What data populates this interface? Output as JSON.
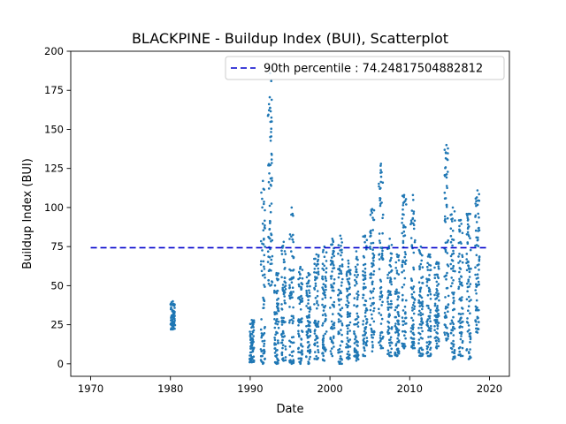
{
  "chart_data": {
    "type": "scatter",
    "title": "BLACKPINE - Buildup Index (BUI), Scatterplot",
    "xlabel": "Date",
    "ylabel": "Buildup Index (BUI)",
    "xlim": [
      1967.5,
      2022.5
    ],
    "ylim": [
      -8,
      200
    ],
    "xticks": [
      1970,
      1980,
      1990,
      2000,
      2010,
      2020
    ],
    "yticks": [
      0,
      25,
      50,
      75,
      100,
      125,
      150,
      175,
      200
    ],
    "grid": false,
    "legend_position": "top-right",
    "point_color": "#1f77b4",
    "reference_line": {
      "label": "90th percentile : 74.24817504882812",
      "y": 74.24817504882812,
      "x_range": [
        1970,
        2020
      ],
      "color": "#0000cc",
      "style": "dashed"
    },
    "series": [
      {
        "clusters": [
          {
            "x": 1980.3,
            "y_min": 22,
            "y_max": 40
          },
          {
            "x": 1990.2,
            "y_min": 1,
            "y_max": 28
          },
          {
            "x": 1991.6,
            "y_min": 0,
            "y_max": 117
          },
          {
            "x": 1992.5,
            "y_min": 50,
            "y_max": 186
          },
          {
            "x": 1993.3,
            "y_min": 0,
            "y_max": 58
          },
          {
            "x": 1994.2,
            "y_min": 2,
            "y_max": 78
          },
          {
            "x": 1995.2,
            "y_min": 0,
            "y_max": 100
          },
          {
            "x": 1996.3,
            "y_min": 0,
            "y_max": 62
          },
          {
            "x": 1997.3,
            "y_min": 0,
            "y_max": 58
          },
          {
            "x": 1998.3,
            "y_min": 3,
            "y_max": 70
          },
          {
            "x": 1999.3,
            "y_min": 2,
            "y_max": 75
          },
          {
            "x": 2000.3,
            "y_min": 5,
            "y_max": 80
          },
          {
            "x": 2001.3,
            "y_min": 0,
            "y_max": 82
          },
          {
            "x": 2002.3,
            "y_min": 3,
            "y_max": 66
          },
          {
            "x": 2003.3,
            "y_min": 2,
            "y_max": 72
          },
          {
            "x": 2004.4,
            "y_min": 5,
            "y_max": 82
          },
          {
            "x": 2005.3,
            "y_min": 8,
            "y_max": 99
          },
          {
            "x": 2006.4,
            "y_min": 10,
            "y_max": 128
          },
          {
            "x": 2007.5,
            "y_min": 5,
            "y_max": 80
          },
          {
            "x": 2008.4,
            "y_min": 5,
            "y_max": 70
          },
          {
            "x": 2009.3,
            "y_min": 10,
            "y_max": 108
          },
          {
            "x": 2010.4,
            "y_min": 10,
            "y_max": 108
          },
          {
            "x": 2011.4,
            "y_min": 5,
            "y_max": 75
          },
          {
            "x": 2012.4,
            "y_min": 5,
            "y_max": 70
          },
          {
            "x": 2013.4,
            "y_min": 10,
            "y_max": 65
          },
          {
            "x": 2014.6,
            "y_min": 15,
            "y_max": 140
          },
          {
            "x": 2015.4,
            "y_min": 3,
            "y_max": 100
          },
          {
            "x": 2016.4,
            "y_min": 5,
            "y_max": 92
          },
          {
            "x": 2017.4,
            "y_min": 3,
            "y_max": 96
          },
          {
            "x": 2018.5,
            "y_min": 20,
            "y_max": 111
          }
        ]
      }
    ]
  }
}
